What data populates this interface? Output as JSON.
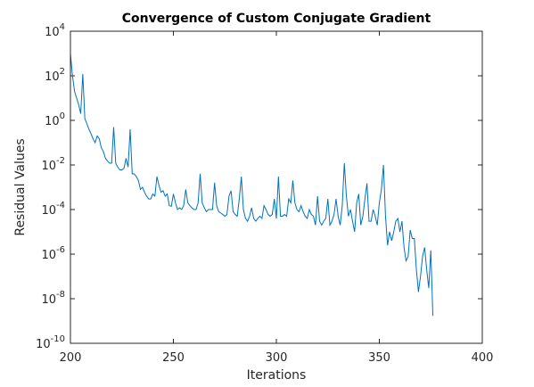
{
  "chart_data": {
    "type": "line",
    "title": "Convergence of Custom Conjugate Gradient",
    "xlabel": "Iterations",
    "ylabel": "Residual Values",
    "yscale": "log",
    "xlim": [
      200,
      400
    ],
    "xticks": [
      200,
      250,
      300,
      350,
      400
    ],
    "ylim": [
      1e-10,
      10000
    ],
    "yticks": [
      {
        "value": 1e-10,
        "label": "10",
        "exponent": "-10"
      },
      {
        "value": 1e-08,
        "label": "10",
        "exponent": "-8"
      },
      {
        "value": 1e-06,
        "label": "10",
        "exponent": "-6"
      },
      {
        "value": 0.0001,
        "label": "10",
        "exponent": "-4"
      },
      {
        "value": 0.01,
        "label": "10",
        "exponent": "-2"
      },
      {
        "value": 1,
        "label": "10",
        "exponent": "0"
      },
      {
        "value": 100,
        "label": "10",
        "exponent": "2"
      },
      {
        "value": 10000,
        "label": "10",
        "exponent": "4"
      }
    ],
    "x": [
      200,
      201,
      202,
      203,
      204,
      205,
      206,
      207,
      208,
      209,
      210,
      211,
      212,
      213,
      214,
      215,
      216,
      217,
      218,
      219,
      220,
      221,
      222,
      223,
      224,
      225,
      226,
      227,
      228,
      229,
      230,
      231,
      232,
      233,
      234,
      235,
      236,
      237,
      238,
      239,
      240,
      241,
      242,
      243,
      244,
      245,
      246,
      247,
      248,
      249,
      250,
      251,
      252,
      253,
      254,
      255,
      256,
      257,
      258,
      259,
      260,
      261,
      262,
      263,
      264,
      265,
      266,
      267,
      268,
      269,
      270,
      271,
      272,
      273,
      274,
      275,
      276,
      277,
      278,
      279,
      280,
      281,
      282,
      283,
      284,
      285,
      286,
      287,
      288,
      289,
      290,
      291,
      292,
      293,
      294,
      295,
      296,
      297,
      298,
      299,
      300,
      301,
      302,
      303,
      304,
      305,
      306,
      307,
      308,
      309,
      310,
      311,
      312,
      313,
      314,
      315,
      316,
      317,
      318,
      319,
      320,
      321,
      322,
      323,
      324,
      325,
      326,
      327,
      328,
      329,
      330,
      331,
      332,
      333,
      334,
      335,
      336,
      337,
      338,
      339,
      340,
      341,
      342,
      343,
      344,
      345,
      346,
      347,
      348,
      349,
      350,
      351,
      352,
      353,
      354,
      355,
      356,
      357,
      358,
      359,
      360,
      361,
      362,
      363,
      364,
      365,
      366,
      367,
      368,
      369,
      370,
      371,
      372,
      373,
      374,
      375,
      376
    ],
    "series": [
      {
        "color": "#0072bd",
        "values": [
          1000,
          100,
          20,
          10,
          5,
          2,
          120,
          1.2,
          0.7,
          0.4,
          0.25,
          0.15,
          0.1,
          0.2,
          0.15,
          0.06,
          0.04,
          0.02,
          0.015,
          0.012,
          0.012,
          0.5,
          0.012,
          0.008,
          0.006,
          0.006,
          0.007,
          0.02,
          0.008,
          0.4,
          0.004,
          0.004,
          0.003,
          0.002,
          0.0008,
          0.001,
          0.0006,
          0.0004,
          0.0003,
          0.0003,
          0.0005,
          0.0004,
          0.003,
          0.0012,
          0.0006,
          0.0007,
          0.0004,
          0.0005,
          0.00015,
          0.00014,
          0.0005,
          0.0002,
          0.0001,
          0.00012,
          0.0001,
          0.00015,
          0.0008,
          0.0002,
          0.00015,
          0.00012,
          0.0001,
          0.0001,
          0.0002,
          0.004,
          0.0002,
          0.00012,
          8e-05,
          0.0001,
          0.0001,
          0.0001,
          0.0016,
          0.00015,
          8e-05,
          7e-05,
          6e-05,
          5e-05,
          6e-05,
          0.0004,
          0.0007,
          8e-05,
          6e-05,
          5e-05,
          0.0003,
          0.003,
          0.0001,
          4e-05,
          3e-05,
          5e-05,
          0.00012,
          4e-05,
          3e-05,
          4e-05,
          5e-05,
          4e-05,
          0.00015,
          0.0001,
          6e-05,
          5e-05,
          6e-05,
          0.0003,
          4e-05,
          0.003,
          5e-05,
          5e-05,
          6e-05,
          5e-05,
          0.0003,
          0.0002,
          0.002,
          0.0002,
          0.0001,
          8e-05,
          0.00015,
          8e-05,
          5e-05,
          4e-05,
          0.0001,
          6e-05,
          5e-05,
          2e-05,
          0.0004,
          3e-05,
          2e-05,
          3e-05,
          4e-05,
          0.0003,
          2e-05,
          3e-05,
          6e-05,
          0.0003,
          5e-05,
          2e-05,
          0.00015,
          0.012,
          0.0004,
          5e-05,
          0.0001,
          3e-05,
          1e-05,
          0.0002,
          0.0005,
          2e-05,
          5e-05,
          0.0003,
          0.0015,
          3e-05,
          3e-05,
          0.0001,
          5e-05,
          2e-05,
          0.0002,
          0.0008,
          0.01,
          5e-05,
          2.5e-06,
          1e-05,
          4e-06,
          1e-05,
          3e-05,
          4e-05,
          1e-05,
          3e-05,
          2e-06,
          5e-07,
          8e-07,
          1.2e-05,
          5e-06,
          5e-06,
          2e-07,
          2e-08,
          1e-07,
          8e-07,
          2e-06,
          2e-07,
          3e-08,
          1.5e-06,
          1.7e-09
        ]
      }
    ]
  }
}
